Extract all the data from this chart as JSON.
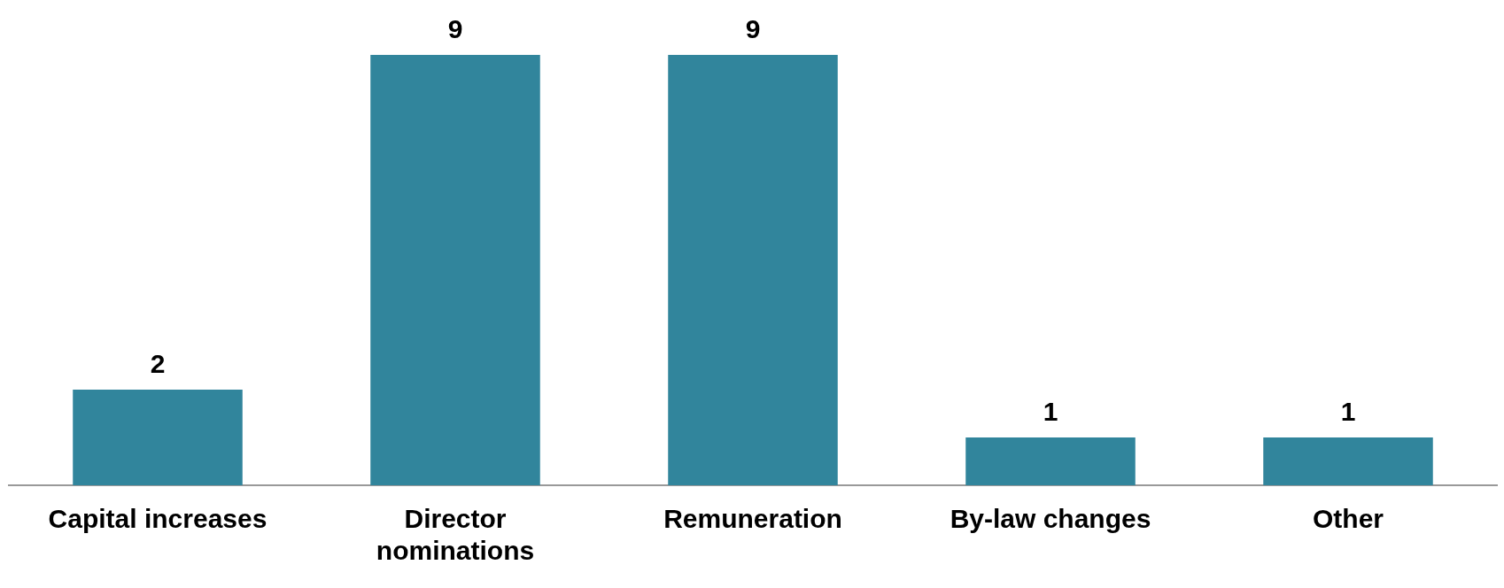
{
  "chart_data": {
    "type": "bar",
    "categories": [
      "Capital increases",
      "Director nominations",
      "Remuneration",
      "By-law changes",
      "Other"
    ],
    "values": [
      2,
      9,
      9,
      1,
      1
    ],
    "color": "#31859c",
    "data_labels": true,
    "grid": false,
    "legend": false
  }
}
